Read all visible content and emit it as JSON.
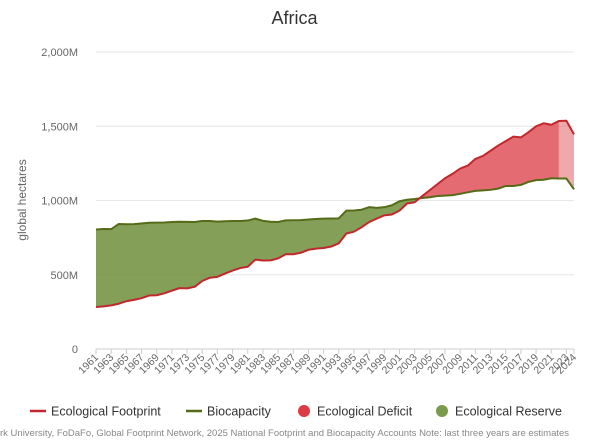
{
  "chart_data": {
    "type": "area",
    "title": "Africa",
    "ylabel": "global hectares",
    "xlabel": "",
    "ylim": [
      0,
      2000000000
    ],
    "yticks": [
      0,
      500000000,
      1000000000,
      1500000000,
      2000000000
    ],
    "ytick_labels": [
      "0",
      "500M",
      "1,000M",
      "1,500M",
      "2,000M"
    ],
    "xtick_labels": [
      "1961",
      "1963",
      "1965",
      "1967",
      "1969",
      "1971",
      "1973",
      "1975",
      "1977",
      "1979",
      "1981",
      "1983",
      "1985",
      "1987",
      "1989",
      "1991",
      "1993",
      "1995",
      "1997",
      "1999",
      "2001",
      "2003",
      "2005",
      "2007",
      "2009",
      "2011",
      "2013",
      "2015",
      "2017",
      "2019",
      "2021",
      "2023",
      "2024"
    ],
    "grid": true,
    "legend_position": "bottom",
    "years": [
      1961,
      1962,
      1963,
      1964,
      1965,
      1966,
      1967,
      1968,
      1969,
      1970,
      1971,
      1972,
      1973,
      1974,
      1975,
      1976,
      1977,
      1978,
      1979,
      1980,
      1981,
      1982,
      1983,
      1984,
      1985,
      1986,
      1987,
      1988,
      1989,
      1990,
      1991,
      1992,
      1993,
      1994,
      1995,
      1996,
      1997,
      1998,
      1999,
      2000,
      2001,
      2002,
      2003,
      2004,
      2005,
      2006,
      2007,
      2008,
      2009,
      2010,
      2011,
      2012,
      2013,
      2014,
      2015,
      2016,
      2017,
      2018,
      2019,
      2020,
      2021,
      2022,
      2023,
      2024
    ],
    "series": [
      {
        "name": "Ecological Footprint",
        "color": "#c0282d",
        "values": [
          283000000,
          287000000,
          294000000,
          305000000,
          322000000,
          331000000,
          342000000,
          360000000,
          362000000,
          375000000,
          393000000,
          410000000,
          408000000,
          419000000,
          458000000,
          480000000,
          486000000,
          508000000,
          528000000,
          545000000,
          554000000,
          602000000,
          596000000,
          597000000,
          610000000,
          638000000,
          638000000,
          648000000,
          668000000,
          676000000,
          680000000,
          690000000,
          712000000,
          778000000,
          790000000,
          820000000,
          855000000,
          878000000,
          900000000,
          906000000,
          932000000,
          980000000,
          988000000,
          1030000000,
          1070000000,
          1110000000,
          1150000000,
          1180000000,
          1215000000,
          1235000000,
          1280000000,
          1300000000,
          1335000000,
          1370000000,
          1400000000,
          1430000000,
          1425000000,
          1460000000,
          1500000000,
          1520000000,
          1510000000,
          1535000000,
          1537000000,
          1445000000
        ]
      },
      {
        "name": "Biocapacity",
        "color": "#556b18",
        "values": [
          805000000,
          808000000,
          807000000,
          842000000,
          840000000,
          841000000,
          845000000,
          850000000,
          851000000,
          852000000,
          855000000,
          857000000,
          856000000,
          855000000,
          862000000,
          862000000,
          858000000,
          860000000,
          862000000,
          862000000,
          865000000,
          878000000,
          863000000,
          857000000,
          855000000,
          866000000,
          867000000,
          868000000,
          872000000,
          875000000,
          878000000,
          879000000,
          880000000,
          932000000,
          933000000,
          938000000,
          955000000,
          950000000,
          955000000,
          968000000,
          995000000,
          1005000000,
          1010000000,
          1017000000,
          1022000000,
          1030000000,
          1033000000,
          1036000000,
          1045000000,
          1055000000,
          1065000000,
          1068000000,
          1072000000,
          1080000000,
          1098000000,
          1098000000,
          1105000000,
          1125000000,
          1137000000,
          1140000000,
          1150000000,
          1148000000,
          1148000000,
          1075000000
        ]
      }
    ],
    "legend": [
      {
        "label": "Ecological Footprint",
        "kind": "line",
        "color": "#c0282d"
      },
      {
        "label": "Biocapacity",
        "kind": "line",
        "color": "#556b18"
      },
      {
        "label": "Ecological Deficit",
        "kind": "circle",
        "color": "#dc3b44"
      },
      {
        "label": "Ecological Reserve",
        "kind": "circle",
        "color": "#7c9a4b"
      }
    ],
    "deficit_color": "#df5158",
    "reserve_color": "#6f8e3b",
    "estimate_from_year": 2022
  },
  "credits": "rk University, FoDaFo, Global Footprint Network, 2025 National Footprint and Biocapacity Accounts Note: last three years are estimates"
}
